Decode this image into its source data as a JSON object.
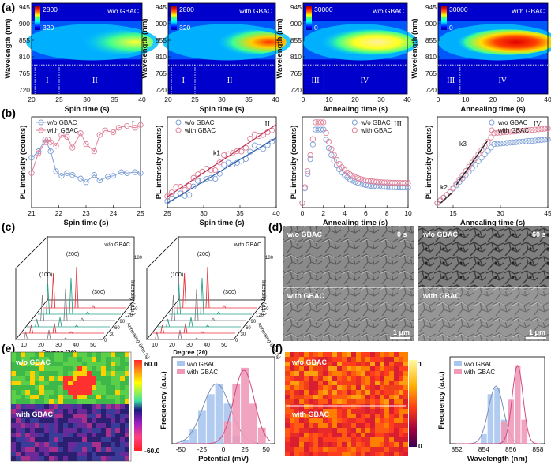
{
  "panel_labels": {
    "a": "(a)",
    "b": "(b)",
    "c": "(c)",
    "d": "(d)",
    "e": "(e)",
    "f": "(f)"
  },
  "colors": {
    "wo": "#7d9fd6",
    "with": "#e07f97",
    "xrd_red": "#e8323c",
    "xrd_teal": "#2aa388",
    "xrd_gray": "#7f7f88",
    "hist_blue": "#a8c6ee",
    "hist_pink": "#ee9ab8"
  },
  "panel_a": {
    "ylabel": "Wavelength (nm)",
    "yticks": [
      "945",
      "900",
      "855",
      "810",
      "765",
      "720"
    ],
    "plots": [
      {
        "title": "w/o GBAC",
        "xlabel": "Spin time (s)",
        "xticks": [
          "20",
          "25",
          "30",
          "35",
          "40"
        ],
        "cbar_max": "2800",
        "cbar_min": "320",
        "regions": [
          "I",
          "II"
        ]
      },
      {
        "title": "with GBAC",
        "xlabel": "Spin time (s)",
        "xticks": [
          "20",
          "25",
          "30",
          "35",
          "40"
        ],
        "cbar_max": "2800",
        "cbar_min": "320",
        "regions": [
          "I",
          "II"
        ]
      },
      {
        "title": "w/o GBAC",
        "xlabel": "Annealing time (s)",
        "xticks": [
          "0",
          "10",
          "20",
          "30",
          "40"
        ],
        "cbar_max": "30000",
        "cbar_min": "0",
        "regions": [
          "III",
          "IV"
        ]
      },
      {
        "title": "with GBAC",
        "xlabel": "Annealing time (s)",
        "xticks": [
          "0",
          "10",
          "20",
          "30",
          "40"
        ],
        "cbar_max": "30000",
        "cbar_min": "0",
        "regions": [
          "III",
          "IV"
        ]
      }
    ]
  },
  "chart_data": [
    {
      "type": "line",
      "id": "b1",
      "roman": "I",
      "xlabel": "Spin time (s)",
      "ylabel": "PL intensity (counts)",
      "xlim": [
        21,
        25
      ],
      "xticks": [
        "21",
        "22",
        "23",
        "24",
        "25"
      ],
      "series": [
        {
          "name": "w/o GBAC",
          "x": [
            21,
            21.25,
            21.5,
            21.7,
            21.9,
            22.1,
            22.3,
            22.5,
            22.8,
            23,
            23.3,
            23.5,
            23.8,
            24,
            24.3,
            24.5,
            24.8,
            25
          ],
          "y": [
            0.55,
            0.62,
            0.75,
            0.62,
            0.4,
            0.35,
            0.38,
            0.36,
            0.32,
            0.28,
            0.36,
            0.3,
            0.34,
            0.35,
            0.39,
            0.38,
            0.39,
            0.38
          ]
        },
        {
          "name": "with GBAC",
          "x": [
            21,
            21.25,
            21.5,
            21.6,
            21.7,
            21.9,
            22.1,
            22.3,
            22.5,
            22.8,
            23,
            23.3,
            23.5,
            23.7,
            24,
            24.2,
            24.5,
            24.8,
            25
          ],
          "y": [
            0.38,
            0.6,
            0.72,
            0.75,
            0.72,
            0.68,
            0.8,
            0.78,
            0.66,
            0.82,
            0.7,
            0.62,
            0.8,
            0.85,
            0.83,
            0.88,
            0.9,
            0.88,
            0.91
          ]
        }
      ]
    },
    {
      "type": "line",
      "id": "b2",
      "roman": "II",
      "annotation": "k1",
      "xlabel": "Spin time (s)",
      "ylabel": "PL intensity (counts)",
      "xlim": [
        25,
        40
      ],
      "xticks": [
        "25",
        "30",
        "35",
        "40"
      ],
      "series": [
        {
          "name": "w/o GBAC",
          "slope": 0.048,
          "intercept": 0.05
        },
        {
          "name": "with GBAC",
          "slope": 0.053,
          "intercept": 0.12
        }
      ]
    },
    {
      "type": "line",
      "id": "b3",
      "roman": "III",
      "xlabel": "Annealing time (s)",
      "ylabel": "PL intensity (counts)",
      "xlim": [
        0,
        10
      ],
      "xticks": [
        "0",
        "2",
        "4",
        "6",
        "8",
        "10"
      ],
      "series": [
        {
          "name": "w/o GBAC",
          "peak": 0.86,
          "tail": 0.22
        },
        {
          "name": "with GBAC",
          "peak": 0.94,
          "tail": 0.27
        }
      ]
    },
    {
      "type": "line",
      "id": "b4",
      "roman": "IV",
      "annotations": [
        "k2",
        "k3"
      ],
      "xlabel": "Annealing time (s)",
      "ylabel": "PL intensity (counts)",
      "xlim": [
        10,
        45
      ],
      "xticks": [
        "15",
        "30",
        "45"
      ],
      "series": [
        {
          "name": "w/o GBAC",
          "plateau": 0.7
        },
        {
          "name": "with GBAC",
          "plateau": 0.82
        }
      ]
    },
    {
      "type": "bar",
      "id": "e",
      "xlabel": "Potential (mV)",
      "ylabel": "Frequency (a.u.)",
      "xlim": [
        -60,
        60
      ],
      "xticks": [
        "-50",
        "-25",
        "0",
        "25",
        "50"
      ],
      "series": [
        {
          "name": "w/o GBAC",
          "x": [
            -45,
            -35,
            -25,
            -15,
            -5,
            5,
            15
          ],
          "values": [
            0.05,
            0.18,
            0.42,
            0.62,
            0.75,
            0.5,
            0.1
          ]
        },
        {
          "name": "with GBAC",
          "x": [
            5,
            15,
            25,
            35,
            45
          ],
          "values": [
            0.28,
            0.75,
            0.95,
            0.5,
            0.2
          ]
        }
      ]
    },
    {
      "type": "bar",
      "id": "f",
      "xlabel": "Wavelength (nm)",
      "ylabel": "Frequency (a.u.)",
      "xlim": [
        851.5,
        858.5
      ],
      "xticks": [
        "852",
        "854",
        "856",
        "858"
      ],
      "series": [
        {
          "name": "w/o GBAC",
          "x": [
            854,
            854.5,
            855,
            855.5
          ],
          "values": [
            0.12,
            0.62,
            0.7,
            0.3
          ]
        },
        {
          "name": "with GBAC",
          "x": [
            855.5,
            856,
            856.5,
            857
          ],
          "values": [
            0.28,
            0.55,
            0.98,
            0.3
          ]
        }
      ]
    }
  ],
  "panel_b_legend": {
    "wo": "w/o GBAC",
    "with": "with GBAC"
  },
  "panel_c": {
    "xlabel": "Degree (2θ)",
    "zlabel": "Annealing time (s)",
    "ylabel": "Intensity (a.u.)",
    "xticks": [
      "10",
      "20",
      "30",
      "40",
      "50"
    ],
    "zticks": [
      "0",
      "30",
      "60",
      "90",
      "120",
      "150",
      "180"
    ],
    "peaks": [
      "(100)",
      "(200)",
      "(300)"
    ],
    "plots": [
      {
        "title": "w/o GBAC"
      },
      {
        "title": "with GBAC"
      }
    ]
  },
  "panel_d": {
    "tl": "w/o GBAC",
    "tr": "w/o GBAC",
    "bl": "with GBAC",
    "br": "with GBAC",
    "time_left": "0 s",
    "time_right": "60 s",
    "scale": "1 μm"
  },
  "panel_e": {
    "map_top": "w/o GBAC",
    "map_bottom": "with GBAC",
    "cbar_max": "60.0",
    "cbar_min": "-60.0",
    "legend_wo": "w/o GBAC",
    "legend_with": "with GBAC"
  },
  "panel_f": {
    "map_top": "w/o GBAC",
    "map_bottom": "with GBAC",
    "cbar_max": "1",
    "cbar_min": "0",
    "legend_wo": "w/o GBAC",
    "legend_with": "with GBAC"
  }
}
